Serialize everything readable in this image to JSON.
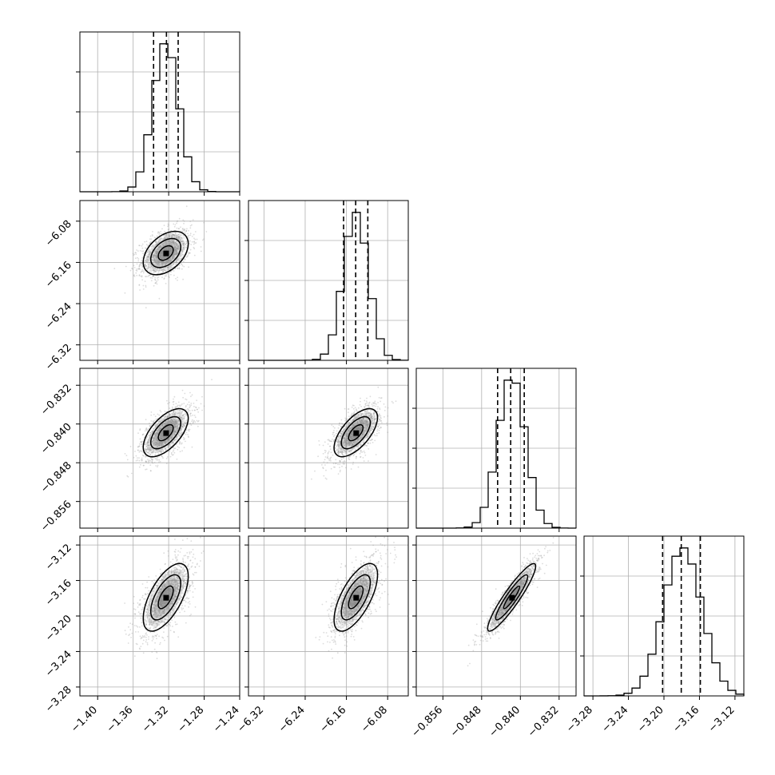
{
  "chart_data": {
    "type": "corner",
    "parameters": [
      {
        "range": [
          -1.42,
          -1.24
        ],
        "ticks": [
          -1.4,
          -1.36,
          -1.32,
          -1.28,
          -1.24
        ],
        "tick_labels": [
          "−1.40",
          "−1.36",
          "−1.32",
          "−1.28",
          "−1.24"
        ],
        "mean": -1.3233,
        "sd": 0.0143,
        "quantiles": [
          -1.337,
          -1.3225,
          -1.3093
        ]
      },
      {
        "range": [
          -6.35,
          -6.04
        ],
        "ticks": [
          -6.32,
          -6.24,
          -6.16,
          -6.08
        ],
        "tick_labels": [
          "−6.32",
          "−6.24",
          "−6.16",
          "−6.08"
        ],
        "mean": -6.1418,
        "sd": 0.0238,
        "quantiles": [
          -6.1655,
          -6.142,
          -6.1185
        ]
      },
      {
        "range": [
          -0.8615,
          -0.8285
        ],
        "ticks": [
          -0.856,
          -0.848,
          -0.84,
          -0.832
        ],
        "tick_labels": [
          "−0.856",
          "−0.848",
          "−0.840",
          "−0.832"
        ],
        "mean": -0.8418,
        "sd": 0.0028,
        "quantiles": [
          -0.8447,
          -0.842,
          -0.8392
        ]
      },
      {
        "range": [
          -3.29,
          -3.11
        ],
        "ticks": [
          -3.28,
          -3.24,
          -3.2,
          -3.16,
          -3.12
        ],
        "tick_labels": [
          "−3.28",
          "−3.24",
          "−3.20",
          "−3.16",
          "−3.12"
        ],
        "mean": -3.179,
        "sd": 0.0215,
        "quantiles": [
          -3.2015,
          -3.1805,
          -3.159
        ]
      }
    ],
    "correlations": {
      "1-0": 0.42,
      "2-0": 0.6,
      "2-1": 0.63,
      "3-0": 0.62,
      "3-1": 0.66,
      "3-2": 0.92
    },
    "histogram_bins": 20,
    "contour_levels": [
      0.5,
      1.0,
      1.5
    ],
    "quantile_line_style": "dashed",
    "grid": true,
    "colors": {
      "line": "#000000",
      "grid": "#b0b0b0",
      "scatter": "#9a9a9a",
      "fill": "#808080"
    }
  }
}
